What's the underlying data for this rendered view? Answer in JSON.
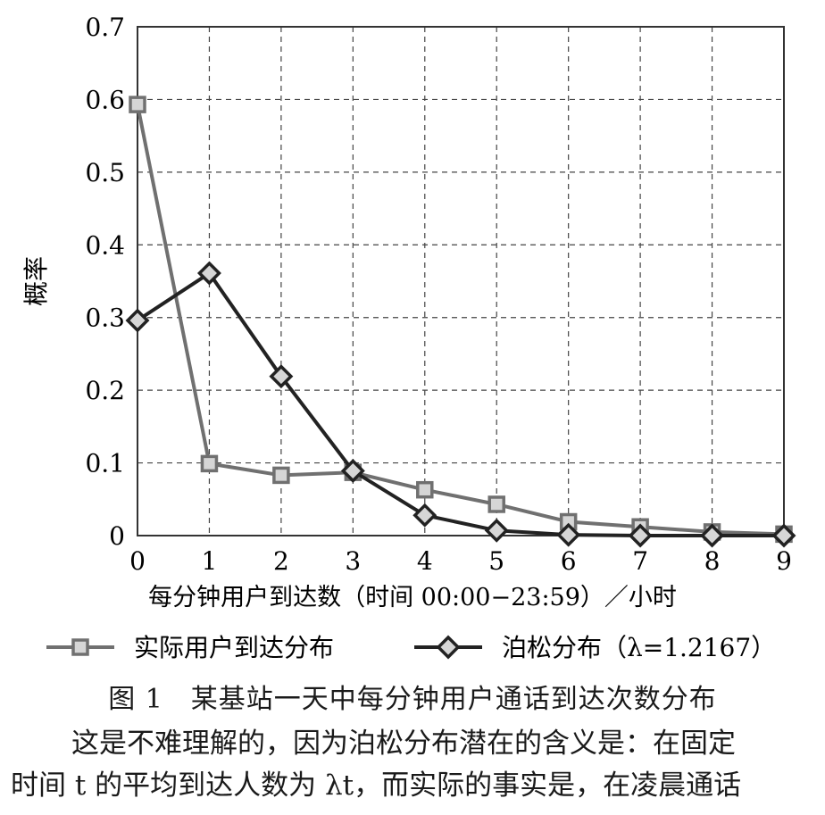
{
  "chart_data": {
    "type": "line",
    "title": "",
    "xlabel": "每分钟用户到达数（时间 00:00−23:59）／小时",
    "ylabel": "概率",
    "x": [
      0,
      1,
      2,
      3,
      4,
      5,
      6,
      7,
      8,
      9
    ],
    "xlim": [
      0,
      9
    ],
    "ylim": [
      0,
      0.7
    ],
    "x_ticks": [
      "0",
      "1",
      "2",
      "3",
      "4",
      "5",
      "6",
      "7",
      "8",
      "9"
    ],
    "y_ticks": [
      "0",
      "0.1",
      "0.2",
      "0.3",
      "0.4",
      "0.5",
      "0.6",
      "0.7"
    ],
    "y_tick_values": [
      0,
      0.1,
      0.2,
      0.3,
      0.4,
      0.5,
      0.6,
      0.7
    ],
    "grid": true,
    "legend_position": "bottom",
    "series": [
      {
        "name": "实际用户到达分布",
        "marker": "square",
        "color": "#707070",
        "values": [
          0.593,
          0.099,
          0.083,
          0.087,
          0.063,
          0.043,
          0.019,
          0.012,
          0.005,
          0.002
        ]
      },
      {
        "name": "泊松分布（λ=1.2167）",
        "marker": "diamond",
        "color": "#222222",
        "values": [
          0.296,
          0.361,
          0.219,
          0.089,
          0.028,
          0.007,
          0.001,
          0.0,
          0.0,
          0.0
        ]
      }
    ]
  },
  "caption": "图 1　某基站一天中每分钟用户通话到达次数分布",
  "body_text": [
    "这是不难理解的，因为泊松分布潜在的含义是：在固定",
    "时间 t 的平均到达人数为 λt，而实际的事实是，在凌晨通话"
  ]
}
